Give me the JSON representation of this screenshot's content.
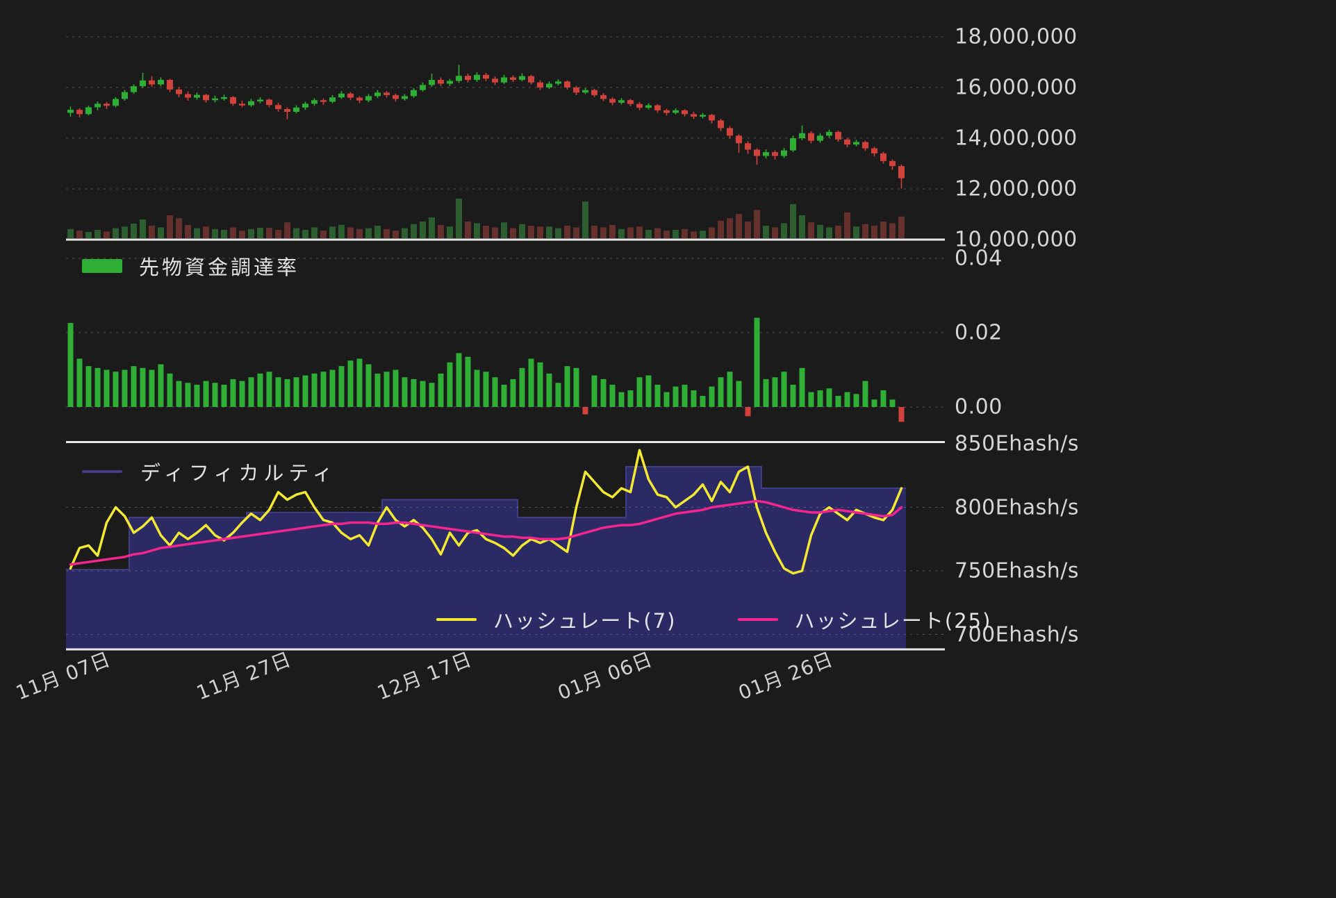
{
  "colors": {
    "background": "#1b1b1b",
    "candle_up": "#2eae34",
    "candle_down": "#d2423c",
    "volume_up": "#2d5e2f",
    "volume_down": "#66302c",
    "funding_positive": "#2eae34",
    "funding_negative": "#d2423c",
    "hashrate7": "#f4e932",
    "hashrate25": "#f3268f",
    "difficulty_fill": "#2e2b6b",
    "difficulty_stroke": "#413e86",
    "grid": "#999999",
    "axis_text": "#d6d6d6",
    "separator": "#e8e8e8"
  },
  "legends": {
    "funding": {
      "label": "先物資金調達率"
    },
    "difficulty": {
      "label": "ディフィカルティ"
    },
    "hashrate7": {
      "label": "ハッシュレート(7)"
    },
    "hashrate25": {
      "label": "ハッシュレート(25)"
    }
  },
  "x_axis": {
    "ticks": [
      {
        "index": 0,
        "label": "11月 07日"
      },
      {
        "index": 20,
        "label": "11月 27日"
      },
      {
        "index": 40,
        "label": "12月 17日"
      },
      {
        "index": 60,
        "label": "01月 06日"
      },
      {
        "index": 80,
        "label": "01月 26日"
      }
    ]
  },
  "chart_data": [
    {
      "type": "candlestick",
      "panel": "price",
      "unit": "JPY",
      "value_scale": "millions",
      "ylim": [
        10,
        19.2
      ],
      "grid": true,
      "yticks": [
        {
          "value": 18,
          "label": "18,000,000"
        },
        {
          "value": 16,
          "label": "16,000,000"
        },
        {
          "value": 14,
          "label": "14,000,000"
        },
        {
          "value": 12,
          "label": "12,000,000"
        },
        {
          "value": 10,
          "label": "10,000,000"
        }
      ],
      "candles": [
        [
          15.0,
          15.25,
          14.85,
          15.12
        ],
        [
          15.12,
          15.18,
          14.82,
          14.95
        ],
        [
          14.95,
          15.28,
          14.9,
          15.22
        ],
        [
          15.22,
          15.45,
          15.1,
          15.36
        ],
        [
          15.36,
          15.42,
          15.15,
          15.28
        ],
        [
          15.28,
          15.62,
          15.22,
          15.55
        ],
        [
          15.55,
          15.9,
          15.48,
          15.82
        ],
        [
          15.82,
          16.12,
          15.75,
          16.05
        ],
        [
          16.05,
          16.58,
          15.98,
          16.28
        ],
        [
          16.28,
          16.45,
          16.02,
          16.12
        ],
        [
          16.12,
          16.4,
          16.05,
          16.3
        ],
        [
          16.3,
          16.34,
          15.82,
          15.92
        ],
        [
          15.92,
          16.02,
          15.62,
          15.74
        ],
        [
          15.74,
          15.85,
          15.48,
          15.6
        ],
        [
          15.6,
          15.8,
          15.52,
          15.71
        ],
        [
          15.71,
          15.75,
          15.4,
          15.5
        ],
        [
          15.5,
          15.68,
          15.42,
          15.57
        ],
        [
          15.57,
          15.72,
          15.48,
          15.62
        ],
        [
          15.62,
          15.66,
          15.28,
          15.36
        ],
        [
          15.36,
          15.48,
          15.22,
          15.3
        ],
        [
          15.3,
          15.55,
          15.24,
          15.46
        ],
        [
          15.46,
          15.62,
          15.38,
          15.52
        ],
        [
          15.52,
          15.56,
          15.22,
          15.31
        ],
        [
          15.31,
          15.4,
          15.05,
          15.15
        ],
        [
          15.15,
          15.22,
          14.75,
          15.04
        ],
        [
          15.04,
          15.3,
          14.98,
          15.21
        ],
        [
          15.21,
          15.44,
          15.12,
          15.36
        ],
        [
          15.36,
          15.58,
          15.28,
          15.5
        ],
        [
          15.5,
          15.57,
          15.32,
          15.44
        ],
        [
          15.44,
          15.7,
          15.38,
          15.61
        ],
        [
          15.61,
          15.86,
          15.55,
          15.76
        ],
        [
          15.76,
          15.82,
          15.5,
          15.6
        ],
        [
          15.6,
          15.66,
          15.38,
          15.49
        ],
        [
          15.49,
          15.74,
          15.42,
          15.66
        ],
        [
          15.66,
          15.9,
          15.58,
          15.8
        ],
        [
          15.8,
          15.86,
          15.6,
          15.7
        ],
        [
          15.7,
          15.76,
          15.44,
          15.55
        ],
        [
          15.55,
          15.74,
          15.48,
          15.66
        ],
        [
          15.66,
          15.98,
          15.6,
          15.9
        ],
        [
          15.9,
          16.2,
          15.84,
          16.1
        ],
        [
          16.1,
          16.55,
          16.02,
          16.3
        ],
        [
          16.3,
          16.4,
          16.05,
          16.15
        ],
        [
          16.15,
          16.34,
          16.06,
          16.26
        ],
        [
          16.26,
          16.9,
          16.18,
          16.46
        ],
        [
          16.46,
          16.55,
          16.2,
          16.3
        ],
        [
          16.3,
          16.6,
          16.22,
          16.5
        ],
        [
          16.5,
          16.58,
          16.25,
          16.35
        ],
        [
          16.35,
          16.44,
          16.1,
          16.2
        ],
        [
          16.2,
          16.5,
          16.14,
          16.4
        ],
        [
          16.4,
          16.48,
          16.22,
          16.3
        ],
        [
          16.3,
          16.56,
          16.24,
          16.45
        ],
        [
          16.45,
          16.5,
          16.12,
          16.2
        ],
        [
          16.2,
          16.28,
          15.9,
          16.0
        ],
        [
          16.0,
          16.24,
          15.94,
          16.15
        ],
        [
          16.15,
          16.32,
          16.08,
          16.24
        ],
        [
          16.24,
          16.28,
          15.92,
          16.0
        ],
        [
          16.0,
          16.06,
          15.7,
          15.8
        ],
        [
          15.8,
          15.98,
          15.74,
          15.9
        ],
        [
          15.9,
          15.95,
          15.62,
          15.7
        ],
        [
          15.7,
          15.78,
          15.46,
          15.55
        ],
        [
          15.55,
          15.62,
          15.3,
          15.4
        ],
        [
          15.4,
          15.58,
          15.34,
          15.5
        ],
        [
          15.5,
          15.55,
          15.26,
          15.35
        ],
        [
          15.35,
          15.42,
          15.1,
          15.2
        ],
        [
          15.2,
          15.38,
          15.14,
          15.3
        ],
        [
          15.3,
          15.34,
          15.0,
          15.1
        ],
        [
          15.1,
          15.16,
          14.9,
          15.0
        ],
        [
          15.0,
          15.18,
          14.94,
          15.1
        ],
        [
          15.1,
          15.14,
          14.86,
          14.95
        ],
        [
          14.95,
          15.04,
          14.76,
          14.85
        ],
        [
          14.85,
          15.0,
          14.78,
          14.92
        ],
        [
          14.92,
          14.96,
          14.58,
          14.7
        ],
        [
          14.7,
          14.76,
          14.28,
          14.4
        ],
        [
          14.4,
          14.48,
          13.98,
          14.1
        ],
        [
          14.1,
          14.16,
          13.42,
          13.8
        ],
        [
          13.8,
          13.88,
          13.38,
          13.55
        ],
        [
          13.55,
          13.6,
          12.95,
          13.3
        ],
        [
          13.3,
          13.56,
          13.2,
          13.45
        ],
        [
          13.45,
          13.52,
          13.16,
          13.3
        ],
        [
          13.3,
          13.62,
          13.22,
          13.52
        ],
        [
          13.52,
          14.1,
          13.46,
          14.0
        ],
        [
          14.0,
          14.5,
          13.92,
          14.2
        ],
        [
          14.2,
          14.28,
          13.8,
          13.9
        ],
        [
          13.9,
          14.2,
          13.82,
          14.1
        ],
        [
          14.1,
          14.34,
          14.02,
          14.25
        ],
        [
          14.25,
          14.3,
          13.86,
          13.95
        ],
        [
          13.95,
          14.02,
          13.64,
          13.75
        ],
        [
          13.75,
          13.94,
          13.68,
          13.85
        ],
        [
          13.85,
          13.9,
          13.5,
          13.6
        ],
        [
          13.6,
          13.66,
          13.28,
          13.4
        ],
        [
          13.4,
          13.46,
          13.0,
          13.1
        ],
        [
          13.1,
          13.16,
          12.75,
          12.9
        ],
        [
          12.9,
          12.96,
          12.02,
          12.42
        ]
      ],
      "volume_scale": "relative-0-100",
      "volume": [
        22,
        18,
        15,
        20,
        16,
        24,
        28,
        35,
        45,
        30,
        26,
        55,
        48,
        32,
        24,
        28,
        22,
        20,
        26,
        18,
        22,
        25,
        25,
        20,
        38,
        24,
        20,
        26,
        18,
        28,
        32,
        26,
        22,
        24,
        30,
        22,
        18,
        24,
        34,
        40,
        50,
        32,
        28,
        95,
        40,
        36,
        30,
        26,
        38,
        24,
        34,
        30,
        28,
        28,
        24,
        30,
        26,
        88,
        30,
        26,
        32,
        22,
        26,
        28,
        20,
        24,
        18,
        20,
        22,
        16,
        18,
        26,
        42,
        48,
        58,
        40,
        68,
        30,
        26,
        36,
        82,
        55,
        38,
        32,
        26,
        30,
        62,
        28,
        34,
        30,
        40,
        36,
        52
      ]
    },
    {
      "type": "bar",
      "panel": "funding",
      "title": "先物資金調達率",
      "ylim": [
        -0.0095,
        0.0455
      ],
      "grid": true,
      "yticks": [
        {
          "value": 0.04,
          "label": "0.04"
        },
        {
          "value": 0.02,
          "label": "0.02"
        },
        {
          "value": 0.0,
          "label": "0.00"
        }
      ],
      "values": [
        0.0226,
        0.013,
        0.011,
        0.0105,
        0.01,
        0.0095,
        0.01,
        0.011,
        0.0105,
        0.01,
        0.0115,
        0.009,
        0.007,
        0.0065,
        0.006,
        0.007,
        0.0065,
        0.006,
        0.0075,
        0.007,
        0.008,
        0.009,
        0.0095,
        0.008,
        0.0075,
        0.008,
        0.0085,
        0.009,
        0.0095,
        0.01,
        0.011,
        0.0125,
        0.013,
        0.0115,
        0.009,
        0.0095,
        0.01,
        0.008,
        0.0075,
        0.007,
        0.0065,
        0.009,
        0.012,
        0.0145,
        0.0135,
        0.01,
        0.0095,
        0.008,
        0.006,
        0.0075,
        0.0105,
        0.013,
        0.012,
        0.009,
        0.0065,
        0.011,
        0.0105,
        -0.002,
        0.0085,
        0.0075,
        0.006,
        0.004,
        0.0045,
        0.008,
        0.0085,
        0.006,
        0.004,
        0.0055,
        0.006,
        0.0045,
        0.003,
        0.0055,
        0.008,
        0.0095,
        0.007,
        -0.0025,
        0.024,
        0.0075,
        0.008,
        0.0095,
        0.006,
        0.0105,
        0.004,
        0.0045,
        0.005,
        0.003,
        0.004,
        0.0035,
        0.007,
        0.002,
        0.0045,
        0.002,
        -0.004
      ]
    },
    {
      "type": "line+area",
      "panel": "hashrate",
      "unit": "Ehash/s",
      "ylim": [
        688,
        852
      ],
      "grid": true,
      "legend_position": "bottom-center",
      "yticks": [
        {
          "value": 850,
          "label": "850Ehash/s"
        },
        {
          "value": 800,
          "label": "800Ehash/s"
        },
        {
          "value": 750,
          "label": "750Ehash/s"
        },
        {
          "value": 700,
          "label": "700Ehash/s"
        }
      ],
      "series": [
        {
          "name": "ディフィカルティ",
          "type": "area-step",
          "color": "#2e2b6b",
          "values": [
            751,
            751,
            751,
            751,
            751,
            751,
            751,
            792,
            792,
            792,
            792,
            792,
            792,
            792,
            792,
            792,
            792,
            792,
            792,
            792,
            796,
            796,
            796,
            796,
            796,
            796,
            796,
            796,
            796,
            796,
            796,
            796,
            796,
            796,
            796,
            806,
            806,
            806,
            806,
            806,
            806,
            806,
            806,
            806,
            806,
            806,
            806,
            806,
            806,
            806,
            792,
            792,
            792,
            792,
            792,
            792,
            792,
            792,
            792,
            792,
            792,
            792,
            832,
            832,
            832,
            832,
            832,
            832,
            832,
            832,
            832,
            832,
            832,
            832,
            832,
            832,
            832,
            815,
            815,
            815,
            815,
            815,
            815,
            815,
            815,
            815,
            815,
            815,
            815,
            815,
            815,
            815,
            815
          ]
        },
        {
          "name": "ハッシュレート(7)",
          "type": "line",
          "color": "#f4e932",
          "values": [
            752,
            768,
            770,
            762,
            788,
            800,
            793,
            780,
            785,
            792,
            778,
            770,
            780,
            775,
            780,
            786,
            778,
            774,
            780,
            788,
            795,
            790,
            798,
            812,
            806,
            810,
            812,
            800,
            790,
            788,
            780,
            775,
            778,
            770,
            788,
            800,
            790,
            785,
            790,
            784,
            775,
            763,
            780,
            770,
            780,
            782,
            775,
            772,
            768,
            762,
            770,
            775,
            772,
            775,
            770,
            765,
            800,
            828,
            820,
            812,
            808,
            815,
            812,
            845,
            822,
            810,
            808,
            800,
            805,
            810,
            818,
            805,
            820,
            812,
            828,
            832,
            800,
            780,
            765,
            752,
            748,
            750,
            778,
            795,
            800,
            795,
            790,
            798,
            795,
            792,
            790,
            798,
            815
          ]
        },
        {
          "name": "ハッシュレート(25)",
          "type": "line",
          "color": "#f3268f",
          "values": [
            755,
            756,
            757,
            758,
            759,
            760,
            761,
            763,
            764,
            766,
            768,
            769,
            770,
            771,
            772,
            773,
            774,
            775,
            776,
            777,
            778,
            779,
            780,
            781,
            782,
            783,
            784,
            785,
            786,
            787,
            787,
            788,
            788,
            788,
            787,
            787,
            788,
            788,
            787,
            786,
            785,
            784,
            783,
            782,
            781,
            780,
            779,
            778,
            777,
            777,
            776,
            776,
            775,
            775,
            775,
            776,
            778,
            780,
            782,
            784,
            785,
            786,
            786,
            787,
            789,
            791,
            793,
            795,
            796,
            797,
            798,
            800,
            801,
            802,
            803,
            804,
            805,
            804,
            802,
            800,
            798,
            797,
            796,
            796,
            797,
            798,
            797,
            796,
            795,
            794,
            793,
            794,
            800
          ]
        }
      ]
    }
  ]
}
